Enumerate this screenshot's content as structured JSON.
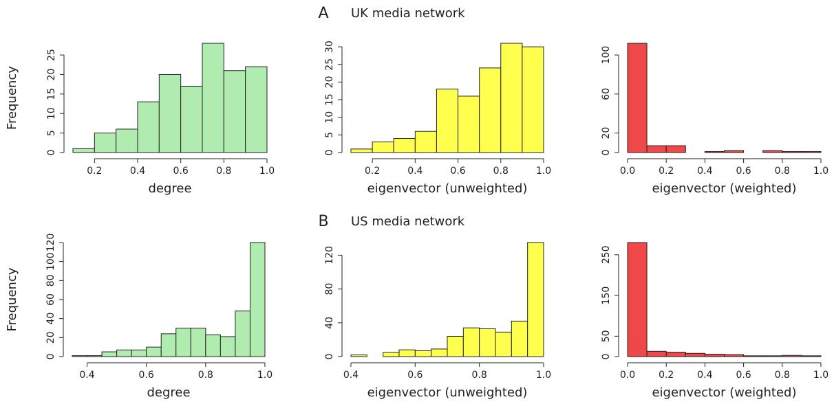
{
  "panels": [
    {
      "label": "A",
      "title": "UK  media network"
    },
    {
      "label": "B",
      "title": "US media network"
    }
  ],
  "chart_data": [
    {
      "type": "histogram",
      "ylabel": "Frequency",
      "xlabel": "degree",
      "color": "#b0ebb0",
      "bins": [
        0.1,
        0.2,
        0.3,
        0.4,
        0.5,
        0.6,
        0.7,
        0.8,
        0.9,
        1.0
      ],
      "values": [
        1,
        5,
        6,
        13,
        20,
        17,
        28,
        21,
        22
      ],
      "xlim": [
        0.1,
        1.0
      ],
      "xticks": [
        0.2,
        0.4,
        0.6,
        0.8,
        {
          "value": 1.0,
          "label": "1.0"
        }
      ],
      "ylim": [
        0,
        28
      ],
      "yticks": [
        0,
        5,
        10,
        15,
        20,
        25
      ]
    },
    {
      "type": "histogram",
      "xlabel": "eigenvector (unweighted)",
      "color": "#ffff4d",
      "bins": [
        0.1,
        0.2,
        0.3,
        0.4,
        0.5,
        0.6,
        0.7,
        0.8,
        0.9,
        1.0
      ],
      "values": [
        1,
        3,
        4,
        6,
        18,
        16,
        24,
        31,
        30
      ],
      "xlim": [
        0.1,
        1.0
      ],
      "xticks": [
        0.2,
        0.4,
        0.6,
        0.8,
        {
          "value": 1.0,
          "label": "1.0"
        }
      ],
      "ylim": [
        0,
        31
      ],
      "yticks": [
        0,
        5,
        10,
        15,
        20,
        25,
        30
      ]
    },
    {
      "type": "histogram",
      "xlabel": "eigenvector (weighted)",
      "color": "#f04848",
      "bins": [
        0,
        0.1,
        0.2,
        0.3,
        0.4,
        0.5,
        0.6,
        0.7,
        0.8,
        0.9,
        1.0
      ],
      "values": [
        112,
        7,
        7,
        0,
        1,
        2,
        0,
        2,
        1,
        1
      ],
      "xlim": [
        0,
        1.0
      ],
      "xticks": [
        {
          "value": 0,
          "label": "0.0"
        },
        0.2,
        0.4,
        0.6,
        0.8,
        {
          "value": 1.0,
          "label": "1.0"
        }
      ],
      "ylim": [
        0,
        112
      ],
      "yticks": [
        0,
        20,
        60,
        100
      ]
    },
    {
      "type": "histogram",
      "ylabel": "Frequency",
      "xlabel": "degree",
      "color": "#b0ebb0",
      "bins": [
        0.35,
        0.4,
        0.45,
        0.5,
        0.55,
        0.6,
        0.65,
        0.7,
        0.75,
        0.8,
        0.85,
        0.9,
        0.95,
        1.0
      ],
      "values": [
        1,
        1,
        5,
        7,
        7,
        10,
        24,
        30,
        30,
        23,
        21,
        48,
        120
      ],
      "xlim": [
        0.35,
        1.0
      ],
      "xticks": [
        0.4,
        0.6,
        0.8,
        {
          "value": 1.0,
          "label": "1.0"
        }
      ],
      "ylim": [
        0,
        120
      ],
      "yticks": [
        0,
        20,
        40,
        60,
        80,
        100,
        120
      ]
    },
    {
      "type": "histogram",
      "xlabel": "eigenvector (unweighted)",
      "color": "#ffff4d",
      "bins": [
        0.4,
        0.45,
        0.5,
        0.55,
        0.6,
        0.65,
        0.7,
        0.75,
        0.8,
        0.85,
        0.9,
        0.95,
        1.0
      ],
      "values": [
        2,
        0,
        5,
        8,
        7,
        9,
        24,
        34,
        33,
        29,
        42,
        135
      ],
      "xlim": [
        0.4,
        1.0
      ],
      "xticks": [
        0.4,
        0.6,
        0.8,
        {
          "value": 1.0,
          "label": "1.0"
        }
      ],
      "ylim": [
        0,
        135
      ],
      "yticks": [
        0,
        40,
        80,
        120
      ]
    },
    {
      "type": "histogram",
      "xlabel": "eigenvector (weighted)",
      "color": "#f04848",
      "bins": [
        0,
        0.1,
        0.2,
        0.3,
        0.4,
        0.5,
        0.6,
        0.7,
        0.8,
        0.9,
        1.0
      ],
      "values": [
        280,
        13,
        11,
        8,
        6,
        5,
        2,
        2,
        3,
        2
      ],
      "xlim": [
        0,
        1.0
      ],
      "xticks": [
        {
          "value": 0,
          "label": "0.0"
        },
        0.2,
        0.4,
        0.6,
        0.8,
        {
          "value": 1.0,
          "label": "1.0"
        }
      ],
      "ylim": [
        0,
        280
      ],
      "yticks": [
        0,
        50,
        150,
        250
      ]
    }
  ]
}
